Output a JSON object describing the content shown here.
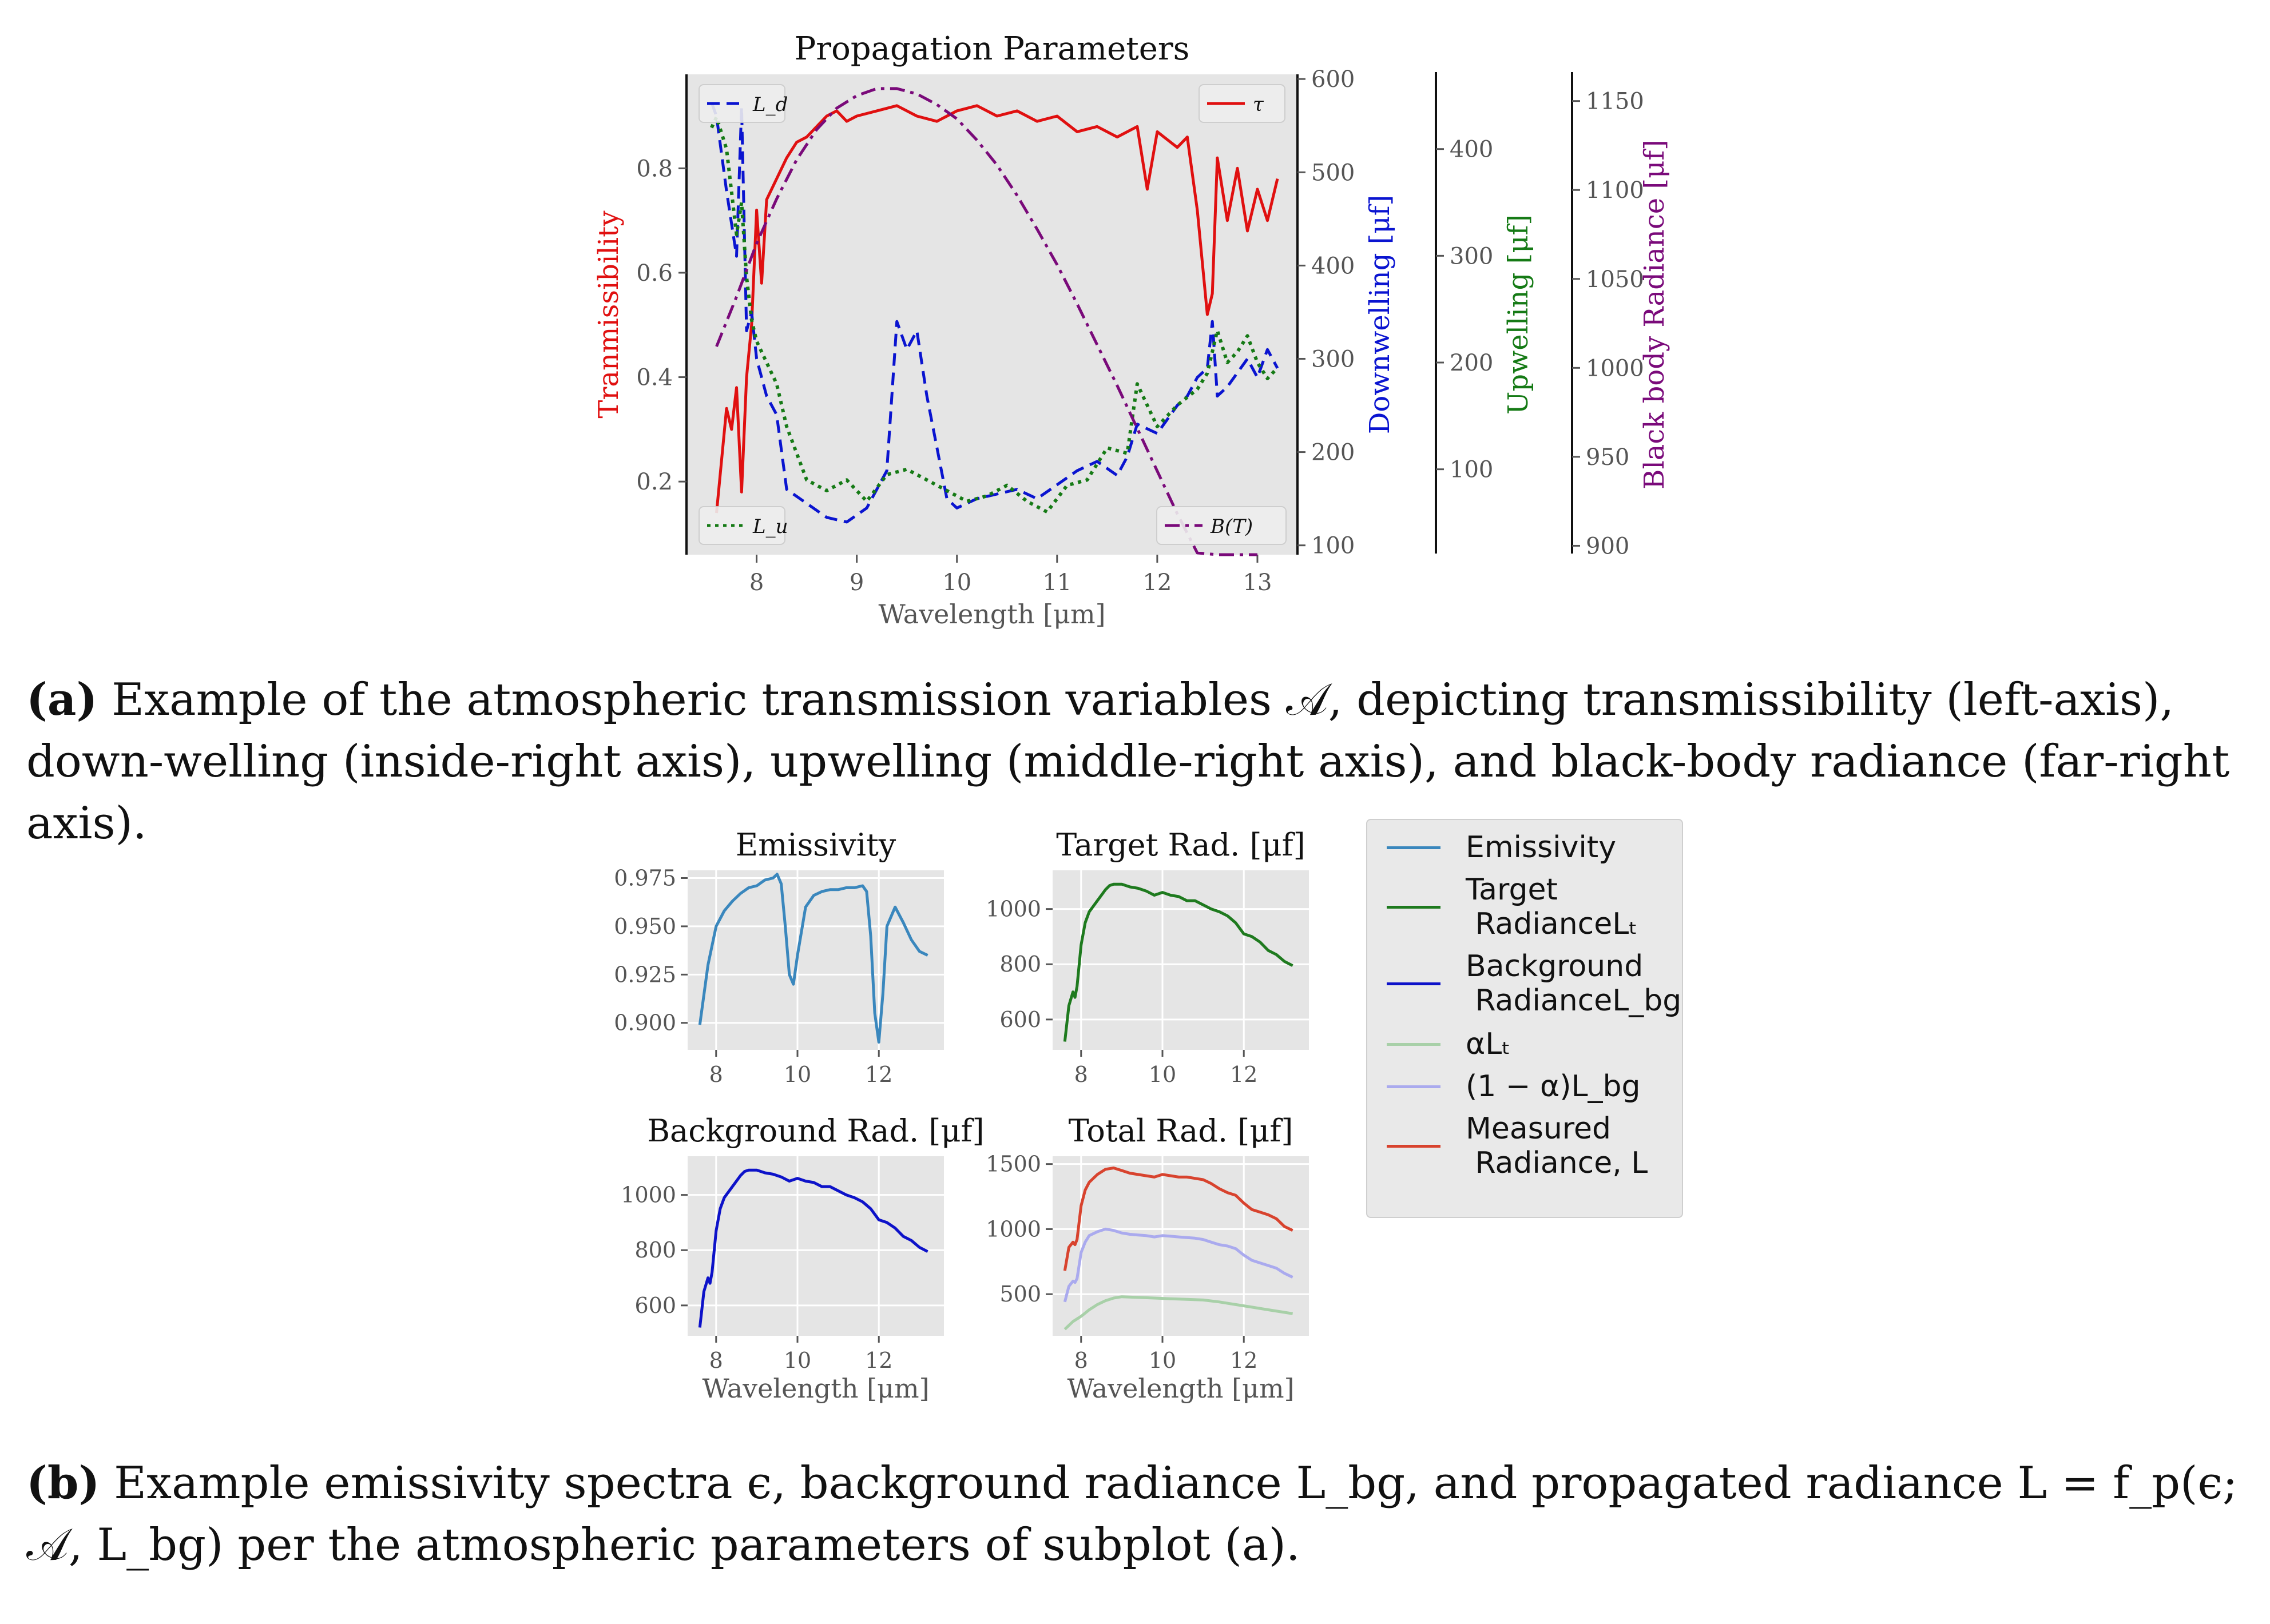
{
  "figure": {
    "caption_a": {
      "label": "(a)",
      "text": "Example of the atmospheric transmission variables 𝒜, depicting transmissibility (left-axis), down-welling (inside-right axis), upwelling (middle-right axis), and black-body radiance (far-right axis)."
    },
    "caption_b": {
      "label": "(b)",
      "text": "Example emissivity spectra ϵ, background radiance L_bg, and propagated radiance L = f_p(ϵ; 𝒜, L_bg) per the atmospheric parameters of subplot (a)."
    }
  },
  "legend_b": [
    {
      "label": "Emissivity",
      "color": "#3a87bd"
    },
    {
      "label": "Target\n RadianceLₜ",
      "color": "#1e7a1e"
    },
    {
      "label": "Background\n RadianceL_bg",
      "color": "#0d12c9"
    },
    {
      "label": "αLₜ",
      "color": "#a8d0a8"
    },
    {
      "label": "(1 − α)L_bg",
      "color": "#aaaaee"
    },
    {
      "label": "Measured\n Radiance, L",
      "color": "#d8432e"
    }
  ],
  "chart_data": [
    {
      "type": "line",
      "title": "Propagation Parameters",
      "xlabel": "Wavelength [μm]",
      "xlim": [
        7.3,
        13.4
      ],
      "xticks": [
        8,
        9,
        10,
        11,
        12,
        13
      ],
      "grid": false,
      "axes": [
        {
          "side": "left",
          "label": "Tranmissibility",
          "color": "#e01010",
          "lim": [
            0.06,
            0.98
          ],
          "ticks": [
            0.2,
            0.4,
            0.6,
            0.8
          ]
        },
        {
          "side": "inside-right",
          "label": "Downwelling [μf]",
          "color": "#0a14d0",
          "lim": [
            90,
            605
          ],
          "ticks": [
            100,
            200,
            300,
            400,
            500,
            600
          ]
        },
        {
          "side": "middle-right",
          "label": "Upwelling [μf]",
          "color": "#157a15",
          "lim": [
            20,
            470
          ],
          "ticks": [
            100,
            200,
            300,
            400
          ]
        },
        {
          "side": "far-right",
          "label": "Black body Radiance [μf]",
          "color": "#7a0a7a",
          "lim": [
            895,
            1165
          ],
          "ticks": [
            900,
            950,
            1000,
            1050,
            1100,
            1150
          ]
        }
      ],
      "legend": [
        {
          "label": "L_d",
          "placement": "top-left"
        },
        {
          "label": "τ",
          "placement": "top-right"
        },
        {
          "label": "L_u",
          "placement": "bottom-left"
        },
        {
          "label": "B(T)",
          "placement": "bottom-right"
        }
      ],
      "series": [
        {
          "name": "τ",
          "axis": 0,
          "color": "#e01010",
          "style": "solid",
          "x": [
            7.6,
            7.7,
            7.75,
            7.8,
            7.85,
            7.9,
            7.95,
            8.0,
            8.05,
            8.1,
            8.2,
            8.3,
            8.4,
            8.5,
            8.6,
            8.7,
            8.8,
            8.9,
            9.0,
            9.2,
            9.4,
            9.6,
            9.8,
            10.0,
            10.2,
            10.4,
            10.6,
            10.8,
            11.0,
            11.2,
            11.4,
            11.6,
            11.8,
            11.9,
            12.0,
            12.2,
            12.3,
            12.4,
            12.5,
            12.55,
            12.6,
            12.7,
            12.8,
            12.9,
            13.0,
            13.1,
            13.2
          ],
          "y": [
            0.14,
            0.34,
            0.3,
            0.38,
            0.18,
            0.4,
            0.5,
            0.72,
            0.58,
            0.74,
            0.78,
            0.82,
            0.85,
            0.86,
            0.88,
            0.9,
            0.91,
            0.89,
            0.9,
            0.91,
            0.92,
            0.9,
            0.89,
            0.91,
            0.92,
            0.9,
            0.91,
            0.89,
            0.9,
            0.87,
            0.88,
            0.86,
            0.88,
            0.76,
            0.87,
            0.84,
            0.86,
            0.72,
            0.52,
            0.56,
            0.82,
            0.7,
            0.8,
            0.68,
            0.76,
            0.7,
            0.78
          ]
        },
        {
          "name": "L_d",
          "axis": 1,
          "color": "#0a14d0",
          "style": "dashed",
          "x": [
            7.55,
            7.6,
            7.7,
            7.8,
            7.85,
            7.9,
            7.95,
            8.0,
            8.1,
            8.2,
            8.3,
            8.5,
            8.7,
            8.9,
            9.1,
            9.3,
            9.4,
            9.5,
            9.6,
            9.7,
            9.9,
            10.0,
            10.2,
            10.4,
            10.6,
            10.8,
            11.0,
            11.2,
            11.4,
            11.6,
            11.7,
            11.8,
            12.0,
            12.2,
            12.3,
            12.4,
            12.5,
            12.55,
            12.6,
            12.7,
            12.8,
            12.9,
            13.0,
            13.1,
            13.2
          ],
          "y": [
            575,
            560,
            480,
            410,
            570,
            330,
            350,
            300,
            260,
            240,
            160,
            145,
            130,
            125,
            140,
            180,
            340,
            310,
            330,
            260,
            150,
            140,
            150,
            155,
            160,
            150,
            165,
            180,
            190,
            175,
            195,
            230,
            220,
            250,
            260,
            280,
            290,
            340,
            260,
            270,
            285,
            300,
            280,
            310,
            290
          ]
        },
        {
          "name": "L_u",
          "axis": 2,
          "color": "#157a15",
          "style": "dotted",
          "x": [
            7.55,
            7.6,
            7.7,
            7.8,
            7.85,
            7.9,
            7.95,
            8.0,
            8.1,
            8.2,
            8.3,
            8.5,
            8.7,
            8.9,
            9.1,
            9.3,
            9.5,
            9.7,
            9.9,
            10.1,
            10.3,
            10.5,
            10.7,
            10.9,
            11.1,
            11.3,
            11.5,
            11.7,
            11.8,
            12.0,
            12.2,
            12.4,
            12.5,
            12.6,
            12.7,
            12.8,
            12.9,
            13.0,
            13.1,
            13.2
          ],
          "y": [
            420,
            430,
            400,
            320,
            350,
            280,
            240,
            220,
            200,
            180,
            140,
            90,
            80,
            90,
            70,
            95,
            100,
            90,
            80,
            70,
            75,
            85,
            70,
            60,
            85,
            90,
            120,
            115,
            180,
            140,
            160,
            175,
            190,
            230,
            200,
            210,
            225,
            200,
            185,
            195
          ]
        },
        {
          "name": "B(T)",
          "axis": 3,
          "color": "#7a0a7a",
          "style": "dashdot",
          "x": [
            7.6,
            7.8,
            8.0,
            8.2,
            8.4,
            8.6,
            8.8,
            9.0,
            9.2,
            9.4,
            9.6,
            9.8,
            10.0,
            10.2,
            10.4,
            10.6,
            10.8,
            11.0,
            11.2,
            11.4,
            11.6,
            11.8,
            12.0,
            12.2,
            12.4,
            12.6,
            12.8,
            13.0
          ],
          "y": [
            1012,
            1040,
            1070,
            1095,
            1117,
            1134,
            1146,
            1153,
            1157,
            1157,
            1154,
            1148,
            1140,
            1128,
            1114,
            1097,
            1078,
            1058,
            1036,
            1013,
            990,
            966,
            942,
            918,
            896,
            872,
            849,
            826
          ]
        }
      ]
    },
    {
      "type": "line",
      "title": "Emissivity",
      "xlim": [
        7.3,
        13.6
      ],
      "ylim": [
        0.886,
        0.979
      ],
      "xticks": [
        8,
        10,
        12
      ],
      "yticks": [
        0.9,
        0.925,
        0.95,
        0.975
      ],
      "grid": true,
      "series": [
        {
          "name": "Emissivity",
          "color": "#3a87bd",
          "x": [
            7.6,
            7.8,
            8.0,
            8.2,
            8.4,
            8.6,
            8.8,
            9.0,
            9.2,
            9.4,
            9.5,
            9.6,
            9.7,
            9.8,
            9.9,
            10.0,
            10.2,
            10.4,
            10.6,
            10.8,
            11.0,
            11.2,
            11.4,
            11.6,
            11.7,
            11.8,
            11.9,
            12.0,
            12.1,
            12.2,
            12.4,
            12.6,
            12.8,
            13.0,
            13.2
          ],
          "y": [
            0.899,
            0.93,
            0.95,
            0.958,
            0.963,
            0.967,
            0.97,
            0.971,
            0.974,
            0.975,
            0.977,
            0.972,
            0.95,
            0.925,
            0.92,
            0.935,
            0.96,
            0.966,
            0.968,
            0.969,
            0.969,
            0.97,
            0.97,
            0.971,
            0.968,
            0.945,
            0.905,
            0.89,
            0.915,
            0.95,
            0.96,
            0.952,
            0.943,
            0.937,
            0.935
          ]
        }
      ]
    },
    {
      "type": "line",
      "title": "Target Rad. [μf]",
      "xlim": [
        7.3,
        13.6
      ],
      "ylim": [
        490,
        1140
      ],
      "xticks": [
        8,
        10,
        12
      ],
      "yticks": [
        600,
        800,
        1000
      ],
      "grid": true,
      "series": [
        {
          "name": "Target Radiance L_t",
          "color": "#1e7a1e",
          "x": [
            7.6,
            7.7,
            7.8,
            7.85,
            7.9,
            8.0,
            8.1,
            8.2,
            8.3,
            8.4,
            8.5,
            8.6,
            8.7,
            8.8,
            9.0,
            9.2,
            9.4,
            9.6,
            9.8,
            10.0,
            10.2,
            10.4,
            10.6,
            10.8,
            11.0,
            11.2,
            11.4,
            11.6,
            11.8,
            12.0,
            12.2,
            12.4,
            12.6,
            12.8,
            13.0,
            13.2
          ],
          "y": [
            520,
            650,
            700,
            680,
            720,
            870,
            950,
            990,
            1010,
            1030,
            1050,
            1070,
            1085,
            1090,
            1090,
            1080,
            1075,
            1065,
            1050,
            1060,
            1050,
            1045,
            1030,
            1030,
            1015,
            1000,
            990,
            975,
            950,
            910,
            900,
            880,
            850,
            835,
            810,
            795
          ]
        }
      ]
    },
    {
      "type": "line",
      "title": "Background Rad. [μf]",
      "xlabel": "Wavelength [μm]",
      "xlim": [
        7.3,
        13.6
      ],
      "ylim": [
        490,
        1140
      ],
      "xticks": [
        8,
        10,
        12
      ],
      "yticks": [
        600,
        800,
        1000
      ],
      "grid": true,
      "series": [
        {
          "name": "Background Radiance L_bg",
          "color": "#0d12c9",
          "x": [
            7.6,
            7.7,
            7.8,
            7.85,
            7.9,
            8.0,
            8.1,
            8.2,
            8.3,
            8.4,
            8.5,
            8.6,
            8.7,
            8.8,
            9.0,
            9.2,
            9.4,
            9.6,
            9.8,
            10.0,
            10.2,
            10.4,
            10.6,
            10.8,
            11.0,
            11.2,
            11.4,
            11.6,
            11.8,
            12.0,
            12.2,
            12.4,
            12.6,
            12.8,
            13.0,
            13.2
          ],
          "y": [
            520,
            650,
            700,
            680,
            720,
            870,
            950,
            990,
            1010,
            1030,
            1050,
            1070,
            1085,
            1090,
            1090,
            1080,
            1075,
            1065,
            1050,
            1060,
            1050,
            1045,
            1030,
            1030,
            1015,
            1000,
            990,
            975,
            950,
            910,
            900,
            880,
            850,
            835,
            810,
            795
          ]
        }
      ]
    },
    {
      "type": "line",
      "title": "Total Rad. [μf]",
      "xlabel": "Wavelength [μm]",
      "xlim": [
        7.3,
        13.6
      ],
      "ylim": [
        180,
        1560
      ],
      "xticks": [
        8,
        10,
        12
      ],
      "yticks": [
        500,
        1000,
        1500
      ],
      "grid": true,
      "series": [
        {
          "name": "Measured Radiance, L",
          "color": "#d8432e",
          "x": [
            7.6,
            7.7,
            7.8,
            7.85,
            7.9,
            8.0,
            8.1,
            8.2,
            8.4,
            8.6,
            8.8,
            9.0,
            9.2,
            9.4,
            9.6,
            9.8,
            10.0,
            10.2,
            10.4,
            10.6,
            10.8,
            11.0,
            11.2,
            11.4,
            11.6,
            11.8,
            12.0,
            12.2,
            12.4,
            12.6,
            12.8,
            13.0,
            13.2
          ],
          "y": [
            680,
            860,
            900,
            880,
            920,
            1180,
            1300,
            1360,
            1420,
            1460,
            1470,
            1450,
            1430,
            1420,
            1410,
            1400,
            1420,
            1410,
            1400,
            1400,
            1390,
            1380,
            1350,
            1310,
            1280,
            1260,
            1200,
            1150,
            1130,
            1110,
            1080,
            1020,
            990
          ]
        },
        {
          "name": "(1 − α)L_bg",
          "color": "#aaaaee",
          "x": [
            7.6,
            7.7,
            7.8,
            7.85,
            7.9,
            8.0,
            8.1,
            8.2,
            8.4,
            8.6,
            8.8,
            9.0,
            9.2,
            9.4,
            9.6,
            9.8,
            10.0,
            10.2,
            10.4,
            10.6,
            10.8,
            11.0,
            11.2,
            11.4,
            11.6,
            11.8,
            12.0,
            12.2,
            12.4,
            12.6,
            12.8,
            13.0,
            13.2
          ],
          "y": [
            440,
            560,
            600,
            590,
            620,
            820,
            900,
            950,
            980,
            1000,
            990,
            970,
            960,
            955,
            950,
            940,
            950,
            945,
            940,
            935,
            930,
            920,
            900,
            880,
            870,
            850,
            800,
            760,
            740,
            720,
            700,
            660,
            630
          ]
        },
        {
          "name": "αL_t",
          "color": "#a8d0a8",
          "x": [
            7.6,
            7.8,
            8.0,
            8.2,
            8.4,
            8.6,
            8.8,
            9.0,
            9.4,
            9.8,
            10.2,
            10.6,
            11.0,
            11.4,
            11.8,
            12.2,
            12.6,
            13.0,
            13.2
          ],
          "y": [
            230,
            290,
            330,
            380,
            420,
            450,
            470,
            480,
            475,
            470,
            465,
            460,
            455,
            440,
            420,
            400,
            380,
            360,
            350
          ]
        }
      ]
    }
  ]
}
